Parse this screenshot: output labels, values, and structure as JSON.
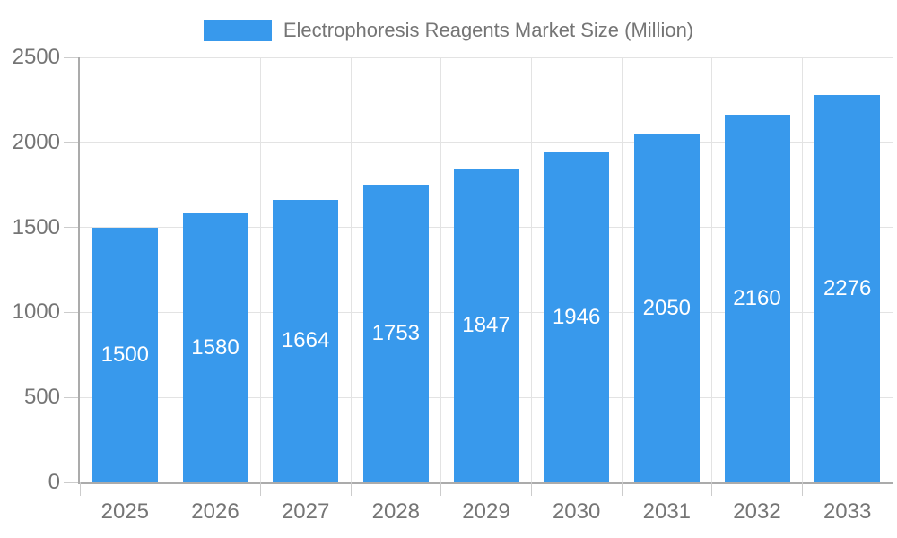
{
  "chart_data": {
    "type": "bar",
    "title": "Electrophoresis Reagents Market Size (Million)",
    "categories": [
      "2025",
      "2026",
      "2027",
      "2028",
      "2029",
      "2030",
      "2031",
      "2032",
      "2033"
    ],
    "values": [
      1500,
      1580,
      1664,
      1753,
      1847,
      1946,
      2050,
      2160,
      2276
    ],
    "xlabel": "",
    "ylabel": "",
    "ylim": [
      0,
      2500
    ],
    "yticks": [
      0,
      500,
      1000,
      1500,
      2000,
      2500
    ],
    "grid": true,
    "legend_position": "top",
    "value_label_position": "inside-center"
  },
  "colors": {
    "bar": "#3899EC",
    "bar_label": "#ffffff",
    "axis_text": "#757575",
    "axis_line": "#ababab",
    "gridline": "#e3e3e3",
    "tick": "#cccccc",
    "background": "#ffffff"
  }
}
